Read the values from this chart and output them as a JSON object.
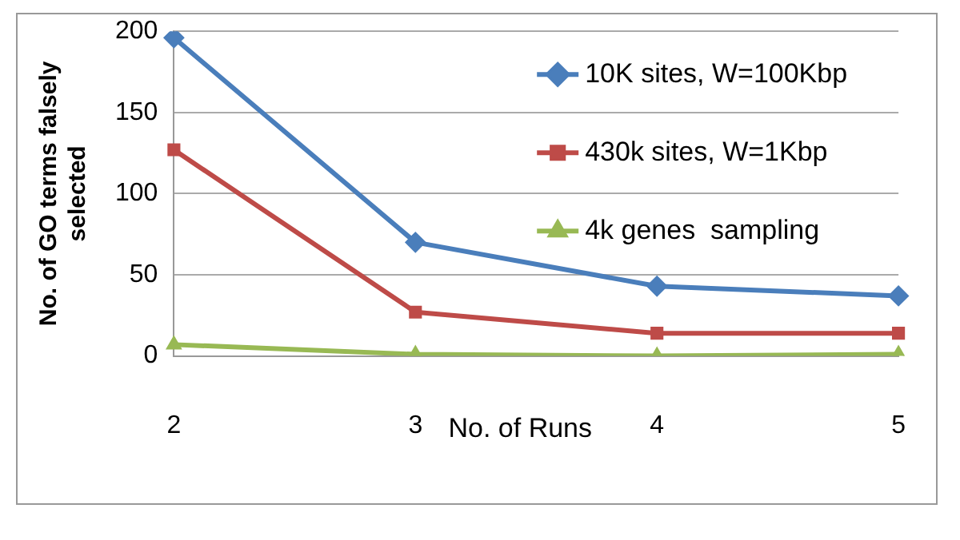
{
  "chart_data": {
    "type": "line",
    "xlabel": "No. of Runs",
    "ylabel": "No. of GO terms falsely\nselected",
    "categories": [
      "2",
      "3",
      "4",
      "5"
    ],
    "series": [
      {
        "name": "10K sites, W=100Kbp",
        "color": "#4a7ebb",
        "marker": "diamond",
        "values": [
          196,
          70,
          43,
          37
        ]
      },
      {
        "name": "430k sites, W=1Kbp",
        "color": "#be4b48",
        "marker": "square",
        "values": [
          127,
          27,
          14,
          14
        ]
      },
      {
        "name": "4k genes  sampling",
        "color": "#98b954",
        "marker": "triangle",
        "values": [
          7,
          1,
          0,
          1
        ]
      }
    ],
    "ylim": [
      0,
      200
    ],
    "yticks": [
      0,
      50,
      100,
      150,
      200
    ],
    "grid": "y",
    "legend": "top right"
  }
}
